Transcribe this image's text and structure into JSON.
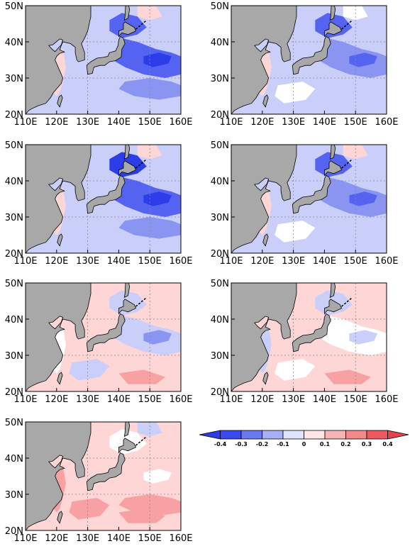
{
  "map": {
    "lon_ticks": [
      "110E",
      "120E",
      "130E",
      "140E",
      "150E",
      "160E"
    ],
    "lat_ticks": [
      "20N",
      "30N",
      "40N",
      "50N"
    ],
    "lon_range": [
      110,
      160
    ],
    "lat_range": [
      20,
      50
    ]
  },
  "colors": {
    "land": "#a8a8a8",
    "ocean_background": "#ffe3e3",
    "levels": [
      "#2b3ce8",
      "#5564f0",
      "#8a95f2",
      "#c9cff8",
      "#ffffff",
      "#ffd6d6",
      "#f7a1a3",
      "#f0787b",
      "#e84348"
    ]
  },
  "panels": [
    {
      "id": "p1",
      "mean_anomaly": -0.15
    },
    {
      "id": "p2",
      "mean_anomaly": -0.1
    },
    {
      "id": "p3",
      "mean_anomaly": -0.15
    },
    {
      "id": "p4",
      "mean_anomaly": -0.1
    },
    {
      "id": "p5",
      "mean_anomaly": 0.0
    },
    {
      "id": "p6",
      "mean_anomaly": 0.05
    },
    {
      "id": "p7",
      "mean_anomaly": 0.15
    }
  ],
  "colorbar": {
    "labels": [
      "-0.4",
      "-0.3",
      "-0.2",
      "-0.1",
      "0",
      "0.1",
      "0.2",
      "0.3",
      "0.4"
    ],
    "colors": [
      "#2b3ce8",
      "#5564f0",
      "#8a95f2",
      "#c9cff8",
      "#ffffff",
      "#ffd6d6",
      "#f7a1a3",
      "#f0787b",
      "#e84348"
    ]
  }
}
